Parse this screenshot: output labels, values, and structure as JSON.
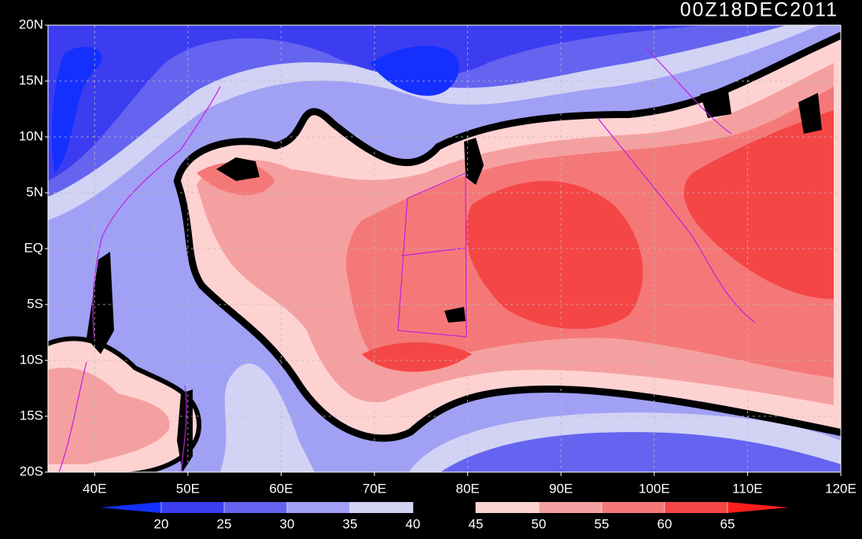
{
  "chart_data": {
    "type": "contour-map",
    "title": "00Z18DEC2011",
    "xlim": [
      35,
      120
    ],
    "ylim": [
      -20,
      20
    ],
    "xticks": [
      {
        "value": 40,
        "label": "40E"
      },
      {
        "value": 50,
        "label": "50E"
      },
      {
        "value": 60,
        "label": "60E"
      },
      {
        "value": 70,
        "label": "70E"
      },
      {
        "value": 80,
        "label": "80E"
      },
      {
        "value": 90,
        "label": "90E"
      },
      {
        "value": 100,
        "label": "100E"
      },
      {
        "value": 110,
        "label": "110E"
      },
      {
        "value": 120,
        "label": "120E"
      }
    ],
    "yticks": [
      {
        "value": -20,
        "label": "20S"
      },
      {
        "value": -15,
        "label": "15S"
      },
      {
        "value": -10,
        "label": "10S"
      },
      {
        "value": -5,
        "label": "5S"
      },
      {
        "value": 0,
        "label": "EQ"
      },
      {
        "value": 5,
        "label": "5N"
      },
      {
        "value": 10,
        "label": "10N"
      },
      {
        "value": 15,
        "label": "15N"
      },
      {
        "value": 20,
        "label": "20N"
      }
    ],
    "grid": true,
    "colorbar": {
      "levels": [
        20,
        25,
        30,
        35,
        40,
        45,
        50,
        55,
        60,
        65
      ],
      "colors": [
        "#1430ff",
        "#3c3cf0",
        "#6464f0",
        "#a0a0f5",
        "#d2d2f5",
        "#000000",
        "#ffd2d2",
        "#f5a0a0",
        "#f57878",
        "#f54646",
        "#ff1e1e"
      ]
    }
  }
}
